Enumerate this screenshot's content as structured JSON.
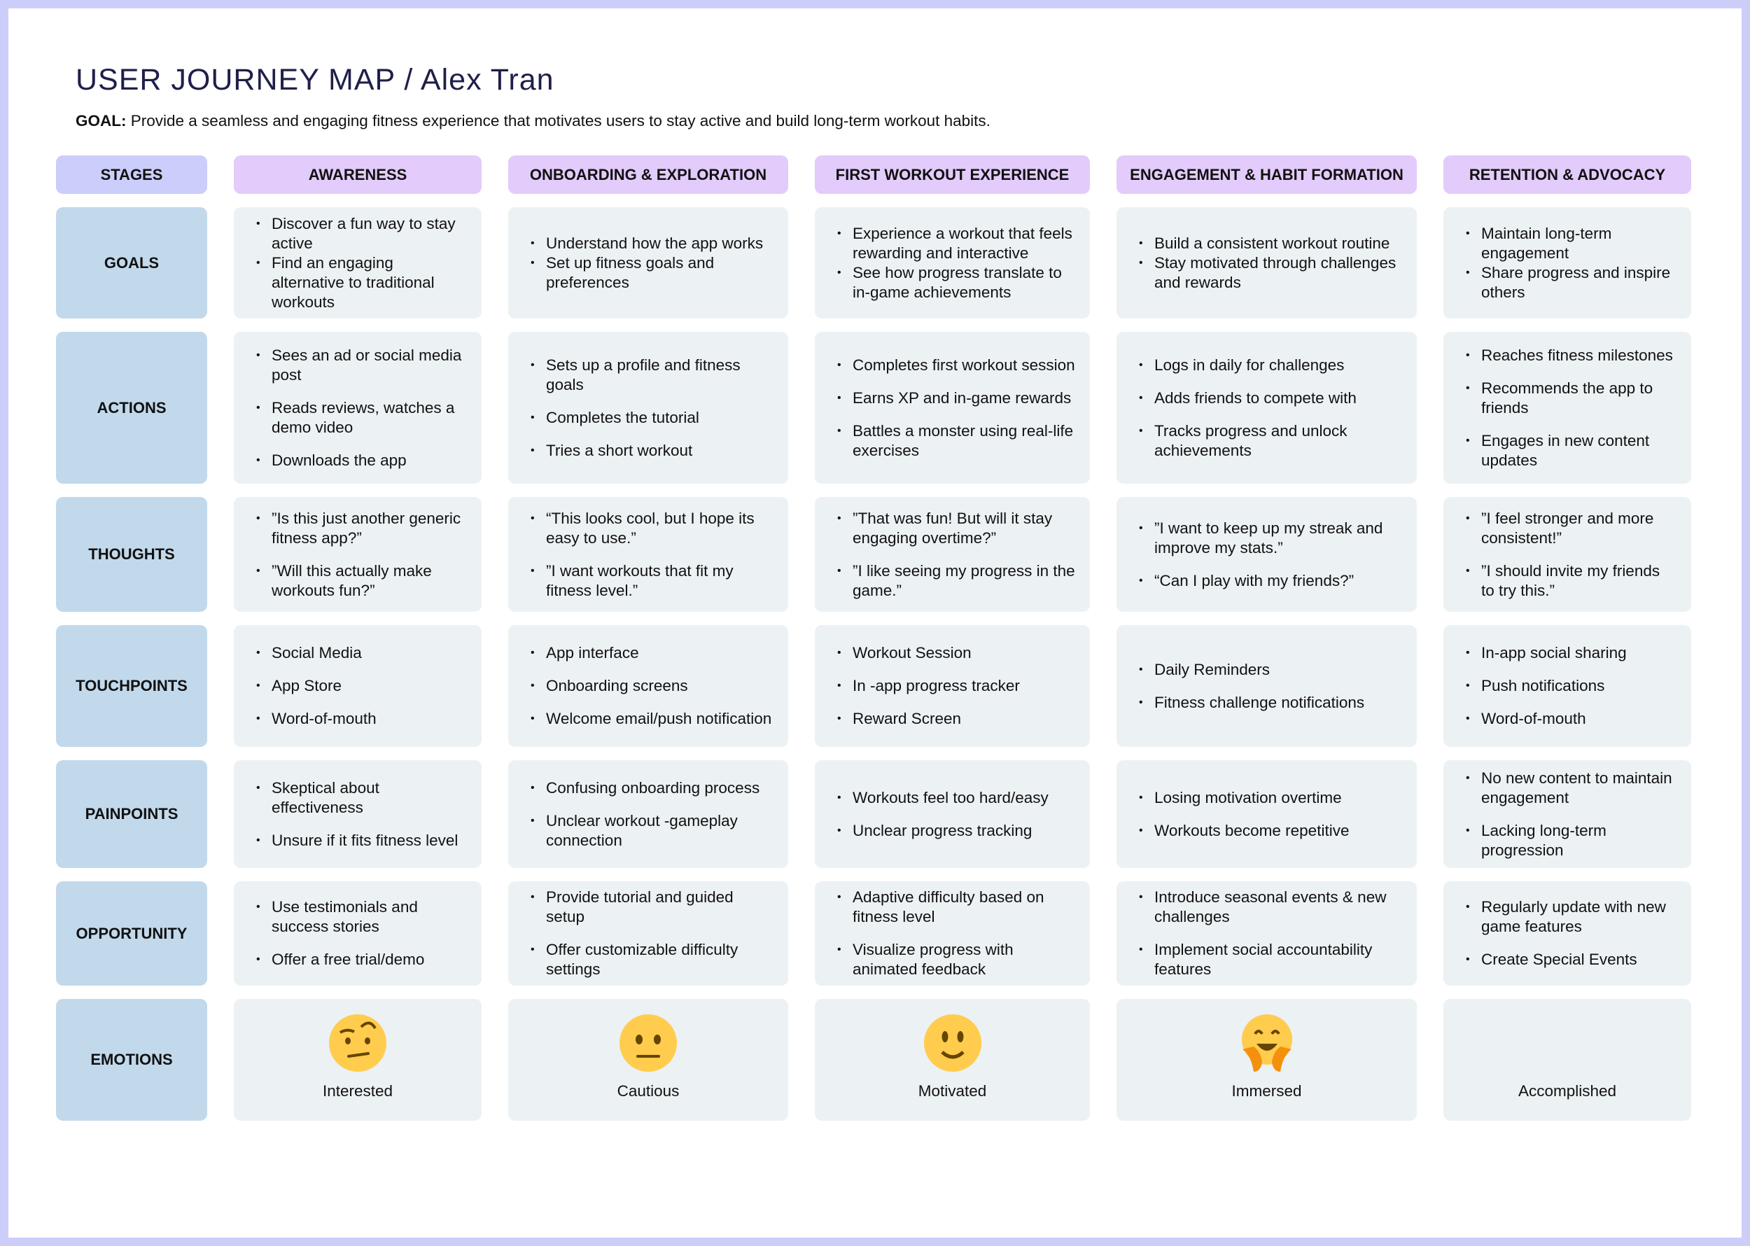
{
  "title": "USER JOURNEY MAP / Alex Tran",
  "goal": {
    "label": "GOAL:",
    "text": " Provide a seamless and engaging fitness experience that motivates users to stay active and build long-term workout habits."
  },
  "colors": {
    "border": "#cdcdfa",
    "stages_header": "#cbcdfa",
    "stage_header": "#e3cbfb",
    "row_label": "#c2d9ec",
    "cell": "#ecf1f4",
    "title": "#1f1f4a"
  },
  "stages_label": "STAGES",
  "stages": [
    "AWARENESS",
    "ONBOARDING & EXPLORATION",
    "FIRST WORKOUT EXPERIENCE",
    "ENGAGEMENT & HABIT FORMATION",
    "RETENTION & ADVOCACY"
  ],
  "rows": [
    {
      "label": "GOALS",
      "cells": [
        [
          "Discover a fun way to stay active",
          "Find an engaging alternative to traditional workouts"
        ],
        [
          "Understand how the app works",
          "Set up fitness goals and preferences"
        ],
        [
          "Experience a workout that feels rewarding and interactive",
          "See how progress translate to in-game achievements"
        ],
        [
          "Build a consistent workout routine",
          "Stay motivated through challenges and rewards"
        ],
        [
          "Maintain long-term engagement",
          "Share progress and inspire others"
        ]
      ]
    },
    {
      "label": "ACTIONS",
      "cells": [
        [
          "Sees an ad or social media post",
          "Reads reviews, watches a demo video",
          "Downloads the app"
        ],
        [
          "Sets up a profile and fitness goals",
          "Completes the tutorial",
          "Tries a short workout"
        ],
        [
          "Completes first workout session",
          "Earns XP and in-game rewards",
          "Battles a monster using real-life exercises"
        ],
        [
          "Logs in daily for challenges",
          "Adds friends to compete with",
          "Tracks progress and unlock achievements"
        ],
        [
          "Reaches fitness milestones",
          "Recommends the app to friends",
          "Engages in new content updates"
        ]
      ]
    },
    {
      "label": "THOUGHTS",
      "cells": [
        [
          "”Is this just another generic fitness app?”",
          "”Will this actually make workouts fun?”"
        ],
        [
          "“This looks cool, but I hope its easy to use.”",
          "”I want workouts that fit my fitness level.”"
        ],
        [
          "”That was fun! But will it stay engaging overtime?”",
          "”I like seeing my progress in the game.”"
        ],
        [
          "”I want to keep up my streak and improve my stats.”",
          "“Can I play with my friends?”"
        ],
        [
          "”I feel stronger and more consistent!”",
          "”I should invite my friends to try this.”"
        ]
      ]
    },
    {
      "label": "TOUCHPOINTS",
      "cells": [
        [
          "Social Media",
          "App Store",
          "Word-of-mouth"
        ],
        [
          "App interface",
          "Onboarding screens",
          "Welcome email/push notification"
        ],
        [
          "Workout Session",
          "In -app progress tracker",
          "Reward Screen"
        ],
        [
          "Daily Reminders",
          "Fitness challenge notifications"
        ],
        [
          "In-app social sharing",
          "Push notifications",
          "Word-of-mouth"
        ]
      ]
    },
    {
      "label": "PAINPOINTS",
      "cells": [
        [
          "Skeptical about effectiveness",
          "Unsure if it fits fitness level"
        ],
        [
          "Confusing onboarding process",
          "Unclear workout -gameplay connection"
        ],
        [
          "Workouts feel too hard/easy",
          "Unclear progress tracking"
        ],
        [
          "Losing motivation overtime",
          "Workouts become repetitive"
        ],
        [
          "No new content to maintain engagement",
          "Lacking long-term progression"
        ]
      ]
    },
    {
      "label": "OPPORTUNITY",
      "cells": [
        [
          "Use testimonials and success stories",
          "Offer a free trial/demo"
        ],
        [
          "Provide tutorial and guided setup",
          "Offer customizable difficulty settings"
        ],
        [
          "Adaptive difficulty based on fitness level",
          "Visualize progress with animated feedback"
        ],
        [
          "Introduce seasonal events & new challenges",
          "Implement social accountability features"
        ],
        [
          "Regularly update with new game features",
          "Create Special Events"
        ]
      ]
    }
  ],
  "emotions": {
    "label": "EMOTIONS",
    "items": [
      {
        "label": "Interested",
        "icon": "face-with-raised-eyebrow-icon"
      },
      {
        "label": "Cautious",
        "icon": "neutral-face-icon"
      },
      {
        "label": "Motivated",
        "icon": "slightly-smiling-face-icon"
      },
      {
        "label": "Immersed",
        "icon": "hugging-face-icon"
      },
      {
        "label": "Accomplished",
        "icon": ""
      }
    ]
  }
}
